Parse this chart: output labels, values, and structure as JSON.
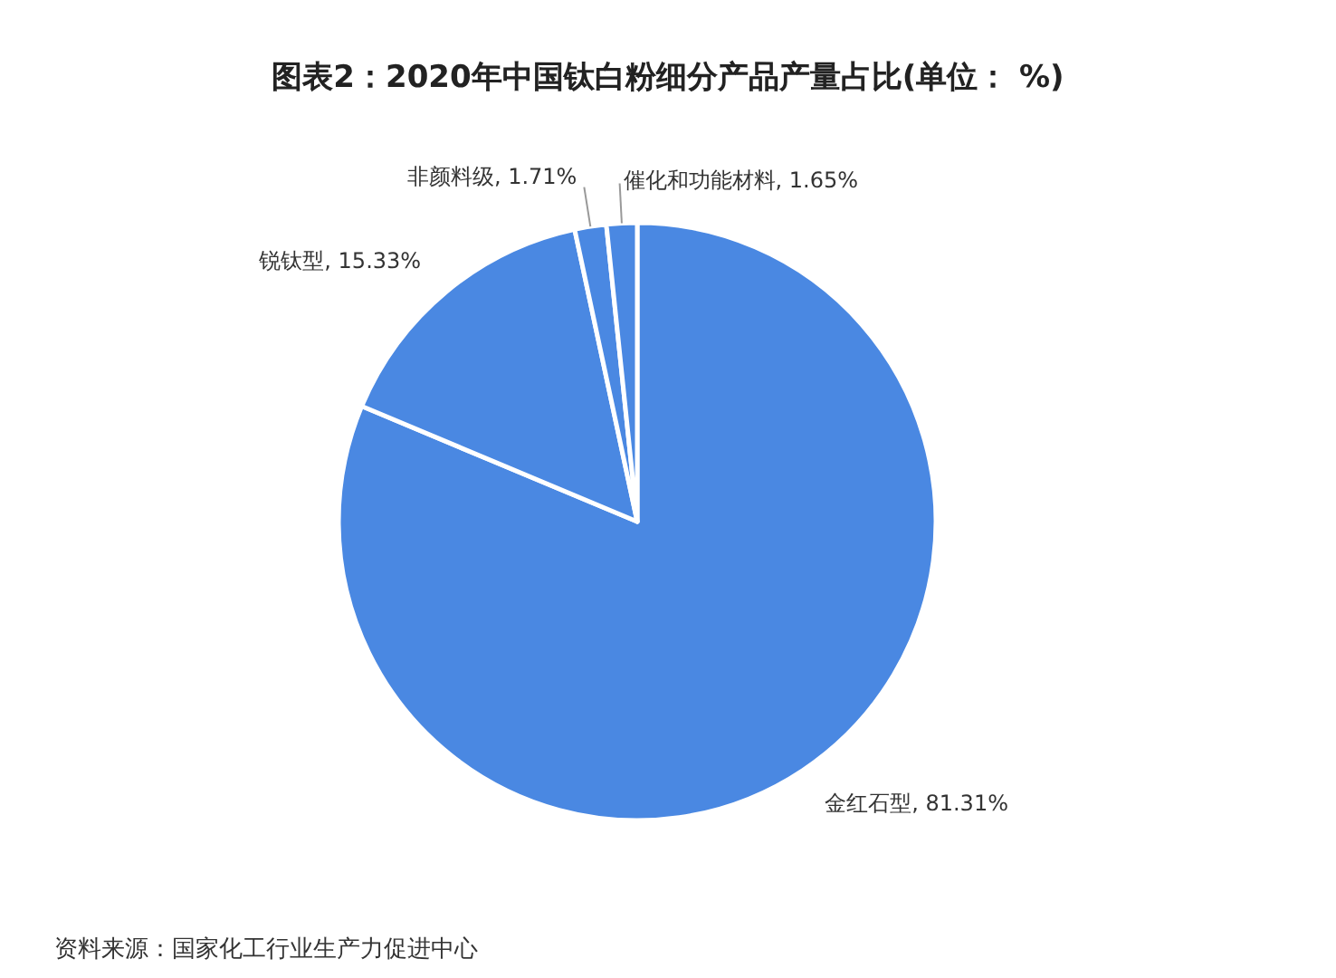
{
  "chart_data": {
    "type": "pie",
    "title": "图表2：2020年中国钛白粉细分产品产量占比(单位： %)",
    "categories": [
      "金红石型",
      "锐钛型",
      "非颜料级",
      "催化和功能材料"
    ],
    "values": [
      81.31,
      15.33,
      1.71,
      1.65
    ],
    "colors": [
      "#4a88e2",
      "#4a88e2",
      "#4a88e2",
      "#4a88e2"
    ],
    "value_labels": [
      "81.31%",
      "15.33%",
      "1.71%",
      "1.65%"
    ],
    "annotations": [
      "资料来源：国家化工行业生产力促进中心"
    ]
  }
}
